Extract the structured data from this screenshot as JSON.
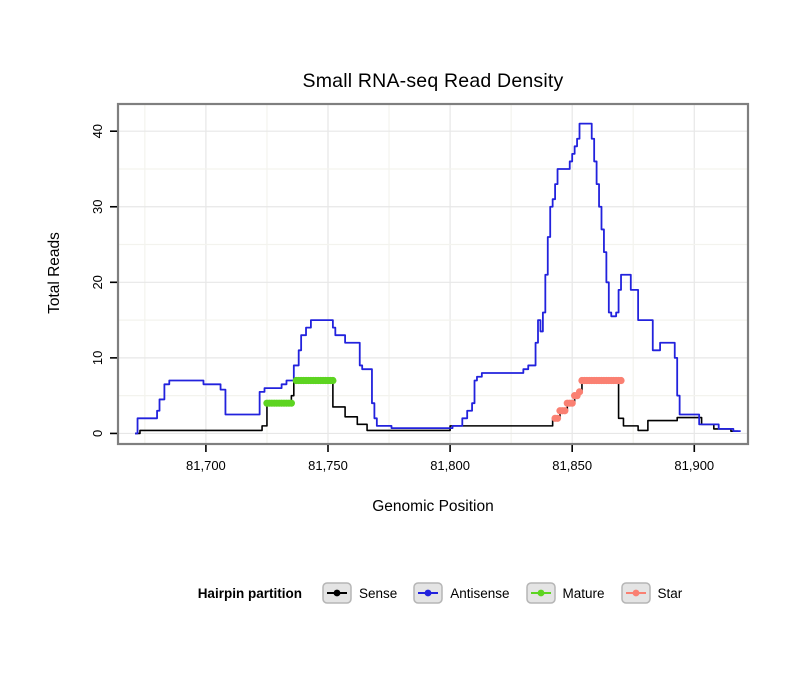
{
  "title": "Small RNA-seq Read Density",
  "axes": {
    "x_label": "Genomic Position",
    "y_label": "Total Reads",
    "x_ticks": [
      {
        "value": 81700,
        "label": "81,700"
      },
      {
        "value": 81750,
        "label": "81,750"
      },
      {
        "value": 81800,
        "label": "81,800"
      },
      {
        "value": 81850,
        "label": "81,850"
      },
      {
        "value": 81900,
        "label": "81,900"
      }
    ],
    "y_ticks": [
      {
        "value": 0,
        "label": "0"
      },
      {
        "value": 10,
        "label": "10"
      },
      {
        "value": 20,
        "label": "20"
      },
      {
        "value": 30,
        "label": "30"
      },
      {
        "value": 40,
        "label": "40"
      }
    ]
  },
  "legend": {
    "title": "Hairpin partition",
    "items": [
      {
        "label": "Sense",
        "color": "#000000"
      },
      {
        "label": "Antisense",
        "color": "#2222dd"
      },
      {
        "label": "Mature",
        "color": "#5dd421"
      },
      {
        "label": "Star",
        "color": "#fa8072"
      }
    ]
  },
  "chart_data": {
    "type": "line",
    "title": "Small RNA-seq Read Density",
    "xlabel": "Genomic Position",
    "ylabel": "Total Reads",
    "xlim": [
      81664,
      81922
    ],
    "ylim": [
      -1.4,
      43.6
    ],
    "grid": true,
    "x_grid": {
      "start": 81675,
      "end": 81900,
      "step": 25
    },
    "y_grid": {
      "start": 0,
      "end": 40,
      "step": 5
    },
    "panel": {
      "border_color": "#7f7f7f",
      "grid_major": "#e7e7e7",
      "grid_minor": "#f3f3ee"
    },
    "series": [
      {
        "name": "Sense",
        "type": "line",
        "color": "#000000",
        "width": 1.6,
        "points": [
          [
            81671,
            0
          ],
          [
            81673,
            0
          ],
          [
            81673,
            0.4
          ],
          [
            81723,
            0.4
          ],
          [
            81723,
            1
          ],
          [
            81725,
            1
          ],
          [
            81725,
            4
          ],
          [
            81735,
            4
          ],
          [
            81735,
            5
          ],
          [
            81736,
            5
          ],
          [
            81736,
            7
          ],
          [
            81752,
            7
          ],
          [
            81752,
            3.5
          ],
          [
            81757,
            3.5
          ],
          [
            81757,
            2.2
          ],
          [
            81762,
            2.2
          ],
          [
            81762,
            1.2
          ],
          [
            81766,
            1.2
          ],
          [
            81766,
            0.4
          ],
          [
            81800,
            0.4
          ],
          [
            81800,
            1
          ],
          [
            81842,
            1
          ],
          [
            81842,
            2
          ],
          [
            81845,
            2
          ],
          [
            81845,
            3
          ],
          [
            81848,
            3
          ],
          [
            81848,
            4
          ],
          [
            81851,
            4
          ],
          [
            81851,
            5
          ],
          [
            81853,
            5
          ],
          [
            81853,
            5.5
          ],
          [
            81854,
            5.5
          ],
          [
            81854,
            7
          ],
          [
            81869,
            7
          ],
          [
            81869,
            2
          ],
          [
            81871,
            2
          ],
          [
            81871,
            1
          ],
          [
            81877,
            1
          ],
          [
            81877,
            0.4
          ],
          [
            81881,
            0.4
          ],
          [
            81881,
            1.7
          ],
          [
            81893,
            1.7
          ],
          [
            81893,
            2.1
          ],
          [
            81903,
            2.1
          ],
          [
            81903,
            1.2
          ],
          [
            81908,
            1.2
          ],
          [
            81908,
            0.6
          ],
          [
            81915,
            0.6
          ],
          [
            81915,
            0.3
          ],
          [
            81918,
            0.3
          ]
        ]
      },
      {
        "name": "Antisense",
        "type": "line",
        "color": "#2222dd",
        "width": 1.8,
        "points": [
          [
            81671,
            0
          ],
          [
            81672,
            0
          ],
          [
            81672,
            2
          ],
          [
            81680,
            2
          ],
          [
            81680,
            3
          ],
          [
            81681,
            3
          ],
          [
            81681,
            4.5
          ],
          [
            81683,
            4.5
          ],
          [
            81683,
            6.5
          ],
          [
            81685,
            6.5
          ],
          [
            81685,
            7
          ],
          [
            81699,
            7
          ],
          [
            81699,
            6.5
          ],
          [
            81706,
            6.5
          ],
          [
            81706,
            5.8
          ],
          [
            81708,
            5.8
          ],
          [
            81708,
            2.5
          ],
          [
            81722,
            2.5
          ],
          [
            81722,
            5.5
          ],
          [
            81724,
            5.5
          ],
          [
            81724,
            6
          ],
          [
            81731,
            6
          ],
          [
            81731,
            6.5
          ],
          [
            81733,
            6.5
          ],
          [
            81733,
            7
          ],
          [
            81736,
            7
          ],
          [
            81736,
            9
          ],
          [
            81738,
            9
          ],
          [
            81738,
            11
          ],
          [
            81739,
            11
          ],
          [
            81739,
            13
          ],
          [
            81741,
            13
          ],
          [
            81741,
            14
          ],
          [
            81743,
            14
          ],
          [
            81743,
            15
          ],
          [
            81752,
            15
          ],
          [
            81752,
            14
          ],
          [
            81753,
            14
          ],
          [
            81753,
            13
          ],
          [
            81757,
            13
          ],
          [
            81757,
            12
          ],
          [
            81763,
            12
          ],
          [
            81763,
            9
          ],
          [
            81764,
            9
          ],
          [
            81764,
            8.5
          ],
          [
            81768,
            8.5
          ],
          [
            81768,
            4
          ],
          [
            81769,
            4
          ],
          [
            81769,
            2
          ],
          [
            81770,
            2
          ],
          [
            81770,
            1
          ],
          [
            81776,
            1
          ],
          [
            81776,
            0.7
          ],
          [
            81801,
            0.7
          ],
          [
            81801,
            1
          ],
          [
            81805,
            1
          ],
          [
            81805,
            2
          ],
          [
            81807,
            2
          ],
          [
            81807,
            3
          ],
          [
            81809,
            3
          ],
          [
            81809,
            4
          ],
          [
            81810,
            4
          ],
          [
            81810,
            7
          ],
          [
            81811,
            7
          ],
          [
            81811,
            7.5
          ],
          [
            81813,
            7.5
          ],
          [
            81813,
            8
          ],
          [
            81830,
            8
          ],
          [
            81830,
            8.5
          ],
          [
            81832,
            8.5
          ],
          [
            81832,
            9
          ],
          [
            81835,
            9
          ],
          [
            81835,
            12
          ],
          [
            81836,
            12
          ],
          [
            81836,
            15
          ],
          [
            81837,
            15
          ],
          [
            81837,
            13.5
          ],
          [
            81838,
            13.5
          ],
          [
            81838,
            16
          ],
          [
            81839,
            16
          ],
          [
            81839,
            21
          ],
          [
            81840,
            21
          ],
          [
            81840,
            26
          ],
          [
            81841,
            26
          ],
          [
            81841,
            30
          ],
          [
            81842,
            30
          ],
          [
            81842,
            31
          ],
          [
            81843,
            31
          ],
          [
            81843,
            33
          ],
          [
            81844,
            33
          ],
          [
            81844,
            35
          ],
          [
            81849,
            35
          ],
          [
            81849,
            36
          ],
          [
            81850,
            36
          ],
          [
            81850,
            37
          ],
          [
            81851,
            37
          ],
          [
            81851,
            38
          ],
          [
            81852,
            38
          ],
          [
            81852,
            39
          ],
          [
            81853,
            39
          ],
          [
            81853,
            41
          ],
          [
            81858,
            41
          ],
          [
            81858,
            39
          ],
          [
            81859,
            39
          ],
          [
            81859,
            36
          ],
          [
            81860,
            36
          ],
          [
            81860,
            33
          ],
          [
            81861,
            33
          ],
          [
            81861,
            30
          ],
          [
            81862,
            30
          ],
          [
            81862,
            27
          ],
          [
            81863,
            27
          ],
          [
            81863,
            24
          ],
          [
            81864,
            24
          ],
          [
            81864,
            20
          ],
          [
            81865,
            20
          ],
          [
            81865,
            16
          ],
          [
            81866,
            16
          ],
          [
            81866,
            15.5
          ],
          [
            81868,
            15.5
          ],
          [
            81868,
            16
          ],
          [
            81869,
            16
          ],
          [
            81869,
            19
          ],
          [
            81870,
            19
          ],
          [
            81870,
            21
          ],
          [
            81874,
            21
          ],
          [
            81874,
            19
          ],
          [
            81877,
            19
          ],
          [
            81877,
            15
          ],
          [
            81883,
            15
          ],
          [
            81883,
            11
          ],
          [
            81886,
            11
          ],
          [
            81886,
            12
          ],
          [
            81892,
            12
          ],
          [
            81892,
            10
          ],
          [
            81893,
            10
          ],
          [
            81893,
            5
          ],
          [
            81894,
            5
          ],
          [
            81894,
            2.5
          ],
          [
            81902,
            2.5
          ],
          [
            81902,
            1.2
          ],
          [
            81910,
            1.2
          ],
          [
            81910,
            0.6
          ],
          [
            81916,
            0.6
          ],
          [
            81916,
            0.3
          ],
          [
            81919,
            0.3
          ]
        ]
      },
      {
        "name": "Mature",
        "type": "points",
        "color": "#5dd421",
        "radius": 3.6,
        "points": [
          [
            81725,
            4
          ],
          [
            81726,
            4
          ],
          [
            81727,
            4
          ],
          [
            81728,
            4
          ],
          [
            81729,
            4
          ],
          [
            81730,
            4
          ],
          [
            81731,
            4
          ],
          [
            81732,
            4
          ],
          [
            81733,
            4
          ],
          [
            81734,
            4
          ],
          [
            81735,
            4
          ],
          [
            81737,
            7
          ],
          [
            81738,
            7
          ],
          [
            81739,
            7
          ],
          [
            81740,
            7
          ],
          [
            81741,
            7
          ],
          [
            81742,
            7
          ],
          [
            81743,
            7
          ],
          [
            81744,
            7
          ],
          [
            81745,
            7
          ],
          [
            81746,
            7
          ],
          [
            81747,
            7
          ],
          [
            81748,
            7
          ],
          [
            81749,
            7
          ],
          [
            81750,
            7
          ],
          [
            81751,
            7
          ],
          [
            81752,
            7
          ]
        ]
      },
      {
        "name": "Star",
        "type": "points",
        "color": "#fa8072",
        "radius": 3.6,
        "points": [
          [
            81843,
            2
          ],
          [
            81844,
            2
          ],
          [
            81845,
            3
          ],
          [
            81846,
            3
          ],
          [
            81847,
            3
          ],
          [
            81848,
            4
          ],
          [
            81849,
            4
          ],
          [
            81850,
            4
          ],
          [
            81851,
            5
          ],
          [
            81852,
            5
          ],
          [
            81853,
            5.5
          ],
          [
            81854,
            7
          ],
          [
            81855,
            7
          ],
          [
            81856,
            7
          ],
          [
            81857,
            7
          ],
          [
            81858,
            7
          ],
          [
            81859,
            7
          ],
          [
            81860,
            7
          ],
          [
            81861,
            7
          ],
          [
            81862,
            7
          ],
          [
            81863,
            7
          ],
          [
            81864,
            7
          ],
          [
            81865,
            7
          ],
          [
            81866,
            7
          ],
          [
            81867,
            7
          ],
          [
            81868,
            7
          ],
          [
            81869,
            7
          ],
          [
            81870,
            7
          ]
        ]
      }
    ]
  }
}
